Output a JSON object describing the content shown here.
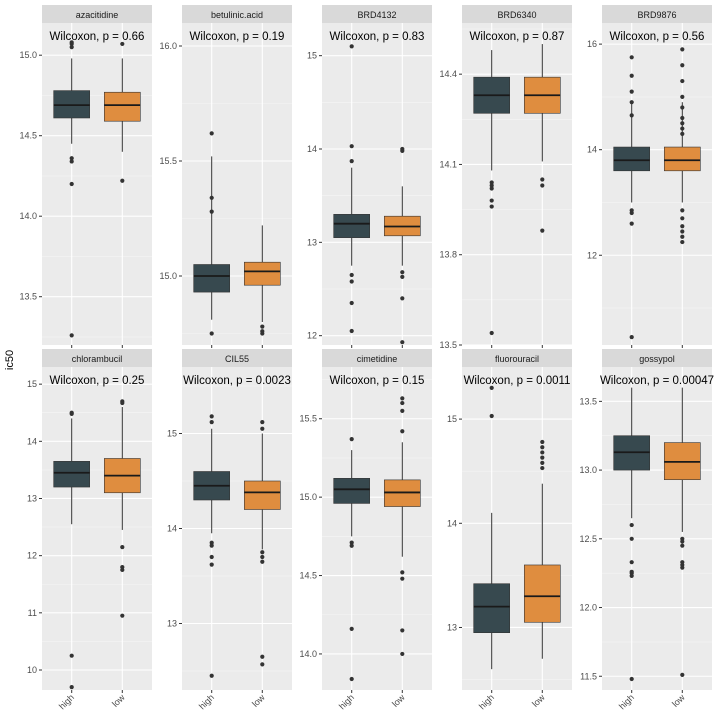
{
  "chart_data": {
    "type": "boxplot",
    "ylabel": "ic50",
    "categories": [
      "high",
      "low"
    ],
    "colors": {
      "high": "#37494f",
      "low": "#df8d3f",
      "panel_bg": "#ebebeb",
      "strip_bg": "#d9d9d9",
      "grid": "#ffffff"
    },
    "panels": [
      {
        "title": "azacitidine",
        "annotation": "Wilcoxon, p = 0.66",
        "ylim": [
          13.2,
          15.2
        ],
        "ticks": [
          "13.5",
          "14.0",
          "14.5",
          "15.0"
        ],
        "boxes": [
          {
            "group": "high",
            "min": 14.45,
            "q1": 14.61,
            "median": 14.69,
            "q3": 14.78,
            "max": 14.98,
            "outliers": [
              15.05,
              15.07,
              15.08,
              14.36,
              14.34,
              14.2,
              13.26
            ]
          },
          {
            "group": "low",
            "min": 14.4,
            "q1": 14.59,
            "median": 14.69,
            "q3": 14.77,
            "max": 14.98,
            "outliers": [
              15.07,
              14.22
            ]
          }
        ]
      },
      {
        "title": "betulinic.acid",
        "annotation": "Wilcoxon, p = 0.19",
        "ylim": [
          14.7,
          16.1
        ],
        "ticks": [
          "15.0",
          "15.5",
          "16.0"
        ],
        "boxes": [
          {
            "group": "high",
            "min": 14.81,
            "q1": 14.93,
            "median": 15.0,
            "q3": 15.05,
            "max": 15.52,
            "outliers": [
              15.62,
              15.34,
              15.28,
              14.75
            ]
          },
          {
            "group": "low",
            "min": 14.8,
            "q1": 14.96,
            "median": 15.02,
            "q3": 15.06,
            "max": 15.22,
            "outliers": [
              14.78,
              14.76,
              14.75
            ]
          }
        ]
      },
      {
        "title": "BRD4132",
        "annotation": "Wilcoxon, p = 0.83",
        "ylim": [
          11.9,
          15.35
        ],
        "ticks": [
          "12",
          "13",
          "14",
          "15"
        ],
        "boxes": [
          {
            "group": "high",
            "min": 12.75,
            "q1": 13.05,
            "median": 13.2,
            "q3": 13.3,
            "max": 13.8,
            "outliers": [
              15.1,
              14.03,
              13.87,
              12.65,
              12.58,
              12.35,
              12.05
            ]
          },
          {
            "group": "low",
            "min": 12.75,
            "q1": 13.07,
            "median": 13.17,
            "q3": 13.28,
            "max": 13.6,
            "outliers": [
              14.0,
              13.98,
              12.68,
              12.63,
              12.4,
              11.93
            ]
          }
        ]
      },
      {
        "title": "BRD6340",
        "annotation": "Wilcoxon, p = 0.87",
        "ylim": [
          13.5,
          14.57
        ],
        "ticks": [
          "13.5",
          "13.8",
          "14.1",
          "14.4"
        ],
        "boxes": [
          {
            "group": "high",
            "min": 14.08,
            "q1": 14.27,
            "median": 14.33,
            "q3": 14.39,
            "max": 14.48,
            "outliers": [
              14.04,
              14.03,
              14.02,
              13.98,
              13.96,
              13.54
            ]
          },
          {
            "group": "low",
            "min": 14.11,
            "q1": 14.27,
            "median": 14.33,
            "q3": 14.39,
            "max": 14.5,
            "outliers": [
              14.05,
              14.03,
              13.88
            ]
          }
        ]
      },
      {
        "title": "BRD9876",
        "annotation": "Wilcoxon, p = 0.56",
        "ylim": [
          10.3,
          16.4
        ],
        "ticks": [
          "12",
          "14",
          "16"
        ],
        "boxes": [
          {
            "group": "high",
            "min": 13.0,
            "q1": 13.6,
            "median": 13.8,
            "q3": 14.05,
            "max": 14.9,
            "outliers": [
              15.75,
              15.4,
              15.1,
              14.9,
              14.65,
              12.85,
              12.8,
              12.6,
              10.45
            ]
          },
          {
            "group": "low",
            "min": 13.0,
            "q1": 13.6,
            "median": 13.8,
            "q3": 14.05,
            "max": 14.9,
            "outliers": [
              15.9,
              15.6,
              15.3,
              15.0,
              14.8,
              14.6,
              14.5,
              14.4,
              14.3,
              12.85,
              12.7,
              12.55,
              12.45,
              12.35,
              12.25
            ]
          }
        ]
      },
      {
        "title": "chlorambucil",
        "annotation": "Wilcoxon, p = 0.25",
        "ylim": [
          9.65,
          15.3
        ],
        "ticks": [
          "10",
          "11",
          "12",
          "13",
          "14",
          "15"
        ],
        "boxes": [
          {
            "group": "high",
            "min": 12.55,
            "q1": 13.2,
            "median": 13.45,
            "q3": 13.65,
            "max": 14.4,
            "outliers": [
              14.5,
              14.48,
              10.25,
              9.7
            ]
          },
          {
            "group": "low",
            "min": 12.45,
            "q1": 13.1,
            "median": 13.4,
            "q3": 13.7,
            "max": 14.6,
            "outliers": [
              14.7,
              14.67,
              12.15,
              11.8,
              11.75,
              10.95
            ]
          }
        ]
      },
      {
        "title": "CIL55",
        "annotation": "Wilcoxon, p = 0.0023",
        "ylim": [
          12.3,
          15.7
        ],
        "ticks": [
          "13",
          "14",
          "15"
        ],
        "boxes": [
          {
            "group": "high",
            "min": 13.95,
            "q1": 14.3,
            "median": 14.45,
            "q3": 14.6,
            "max": 15.05,
            "outliers": [
              15.18,
              15.12,
              13.85,
              13.82,
              13.7,
              13.62,
              12.45
            ]
          },
          {
            "group": "low",
            "min": 13.78,
            "q1": 14.2,
            "median": 14.38,
            "q3": 14.5,
            "max": 15.0,
            "outliers": [
              15.12,
              15.05,
              13.75,
              13.7,
              13.65,
              12.65,
              12.57
            ]
          }
        ]
      },
      {
        "title": "cimetidine",
        "annotation": "Wilcoxon, p = 0.15",
        "ylim": [
          13.77,
          15.83
        ],
        "ticks": [
          "14.0",
          "14.5",
          "15.0",
          "15.5"
        ],
        "boxes": [
          {
            "group": "high",
            "min": 14.75,
            "q1": 14.96,
            "median": 15.05,
            "q3": 15.12,
            "max": 15.3,
            "outliers": [
              15.37,
              14.71,
              14.69,
              14.16,
              13.84
            ]
          },
          {
            "group": "low",
            "min": 14.62,
            "q1": 14.94,
            "median": 15.03,
            "q3": 15.11,
            "max": 15.35,
            "outliers": [
              15.63,
              15.6,
              15.55,
              15.42,
              14.52,
              14.48,
              14.15,
              14.0
            ]
          }
        ]
      },
      {
        "title": "fluorouracil",
        "annotation": "Wilcoxon, p = 0.0011",
        "ylim": [
          12.4,
          15.5
        ],
        "ticks": [
          "13",
          "14",
          "15"
        ],
        "boxes": [
          {
            "group": "high",
            "min": 12.6,
            "q1": 12.95,
            "median": 13.2,
            "q3": 13.42,
            "max": 14.1,
            "outliers": [
              15.3,
              15.03
            ]
          },
          {
            "group": "low",
            "min": 12.7,
            "q1": 13.05,
            "median": 13.3,
            "q3": 13.6,
            "max": 14.38,
            "outliers": [
              14.78,
              14.73,
              14.68,
              14.63,
              14.58,
              14.53
            ]
          }
        ]
      },
      {
        "title": "gossypol",
        "annotation": "Wilcoxon, p = 0.00047",
        "ylim": [
          11.4,
          13.75
        ],
        "ticks": [
          "11.5",
          "12.0",
          "12.5",
          "13.0",
          "13.5"
        ],
        "boxes": [
          {
            "group": "high",
            "min": 12.65,
            "q1": 13.0,
            "median": 13.13,
            "q3": 13.25,
            "max": 13.6,
            "outliers": [
              12.6,
              12.5,
              12.33,
              12.26,
              12.25,
              12.23,
              11.48
            ]
          },
          {
            "group": "low",
            "min": 12.55,
            "q1": 12.93,
            "median": 13.06,
            "q3": 13.2,
            "max": 13.6,
            "outliers": [
              12.5,
              12.48,
              12.45,
              12.33,
              12.31,
              12.29,
              11.51
            ]
          }
        ]
      }
    ]
  }
}
